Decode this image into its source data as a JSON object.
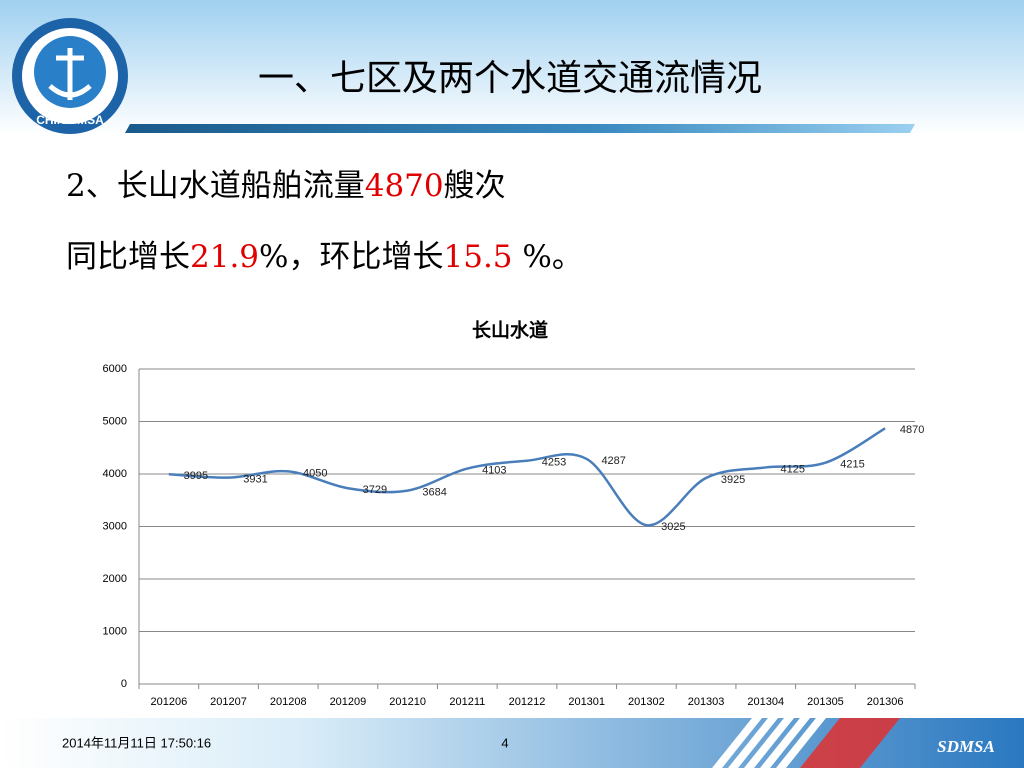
{
  "header": {
    "title": "一、七区及两个水道交通流情况"
  },
  "logo": {
    "text": "CHINA MSA"
  },
  "body": {
    "line1": [
      "2、长山水道船舶流量",
      "4870",
      "艘次"
    ],
    "line2": [
      "同比增长",
      "21.9",
      "%，环比增长",
      "15.5",
      " %。"
    ]
  },
  "footer": {
    "date": "2014年11月11日  17:50:16",
    "page": "4",
    "brand": "SDMSA"
  },
  "chart_data": {
    "type": "line",
    "title": "长山水道",
    "categories": [
      "201206",
      "201207",
      "201208",
      "201209",
      "201210",
      "201211",
      "201212",
      "201301",
      "201302",
      "201303",
      "201304",
      "201305",
      "201306"
    ],
    "series": [
      {
        "name": "长山水道",
        "color": "#4a7ebb",
        "values": [
          3995,
          3931,
          4050,
          3729,
          3684,
          4103,
          4253,
          4287,
          3025,
          3925,
          4125,
          4215,
          4870
        ]
      }
    ],
    "ylim": [
      0,
      6000
    ],
    "yticks": [
      0,
      1000,
      2000,
      3000,
      4000,
      5000,
      6000
    ],
    "grid": true,
    "data_labels": true
  }
}
